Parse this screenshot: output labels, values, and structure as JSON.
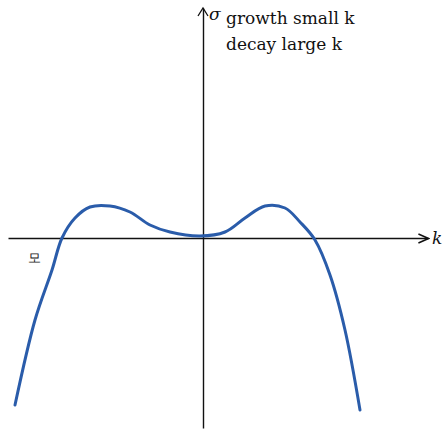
{
  "chart_data": {
    "type": "line",
    "x_label": "k",
    "y_label": "σ",
    "annotations": [
      "growth small k",
      "decay large k",
      "모"
    ],
    "x": [
      -1.88,
      -1.68,
      -1.51,
      -1.41,
      -1.28,
      -1.13,
      -0.93,
      -0.73,
      -0.53,
      -0.33,
      -0.03,
      0.22,
      0.42,
      0.62,
      0.82,
      0.97,
      1.12,
      1.27,
      1.42,
      1.57
    ],
    "values": [
      -1.67,
      -0.82,
      -0.32,
      0,
      0.2,
      0.31,
      0.32,
      0.26,
      0.13,
      0.06,
      0.02,
      0.06,
      0.2,
      0.32,
      0.3,
      0.16,
      -0.02,
      -0.37,
      -0.92,
      -1.72
    ],
    "color": "#2a5caa",
    "xlim": [
      -1.95,
      2.25
    ],
    "ylim": [
      -1.9,
      2.3
    ],
    "grid": false,
    "tick_labels": false
  }
}
